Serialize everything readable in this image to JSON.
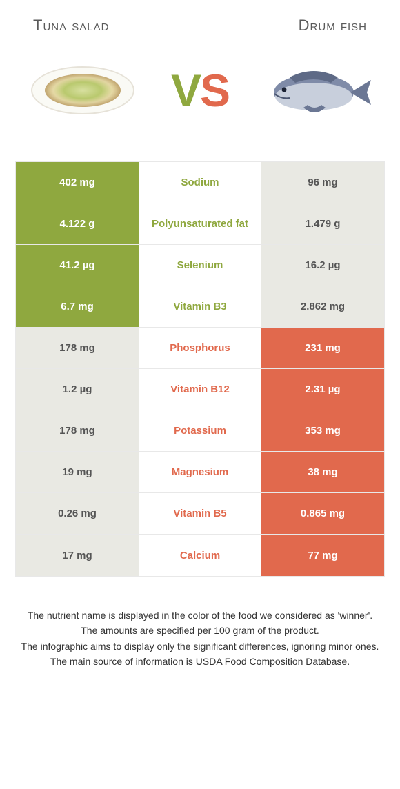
{
  "colors": {
    "left": "#8fa83f",
    "right": "#e1694d",
    "grey_bg": "#e9e9e3",
    "grey_text": "#555555",
    "white": "#ffffff",
    "border": "#e8e8e8",
    "body_text": "#333333"
  },
  "type": "comparison-table",
  "left_title": "Tuna salad",
  "right_title": "Drum fish",
  "vs_label": {
    "v": "V",
    "s": "S"
  },
  "rows": [
    {
      "nutrient": "Sodium",
      "left": "402 mg",
      "right": "96 mg",
      "winner": "left"
    },
    {
      "nutrient": "Polyunsaturated fat",
      "left": "4.122 g",
      "right": "1.479 g",
      "winner": "left"
    },
    {
      "nutrient": "Selenium",
      "left": "41.2 µg",
      "right": "16.2 µg",
      "winner": "left"
    },
    {
      "nutrient": "Vitamin B3",
      "left": "6.7 mg",
      "right": "2.862 mg",
      "winner": "left"
    },
    {
      "nutrient": "Phosphorus",
      "left": "178 mg",
      "right": "231 mg",
      "winner": "right"
    },
    {
      "nutrient": "Vitamin B12",
      "left": "1.2 µg",
      "right": "2.31 µg",
      "winner": "right"
    },
    {
      "nutrient": "Potassium",
      "left": "178 mg",
      "right": "353 mg",
      "winner": "right"
    },
    {
      "nutrient": "Magnesium",
      "left": "19 mg",
      "right": "38 mg",
      "winner": "right"
    },
    {
      "nutrient": "Vitamin B5",
      "left": "0.26 mg",
      "right": "0.865 mg",
      "winner": "right"
    },
    {
      "nutrient": "Calcium",
      "left": "17 mg",
      "right": "77 mg",
      "winner": "right"
    }
  ],
  "footnotes": [
    "The nutrient name is displayed in the color of the food we considered as 'winner'.",
    "The amounts are specified per 100 gram of the product.",
    "The infographic aims to display only the significant differences, ignoring minor ones.",
    "The main source of information is USDA Food Composition Database."
  ]
}
